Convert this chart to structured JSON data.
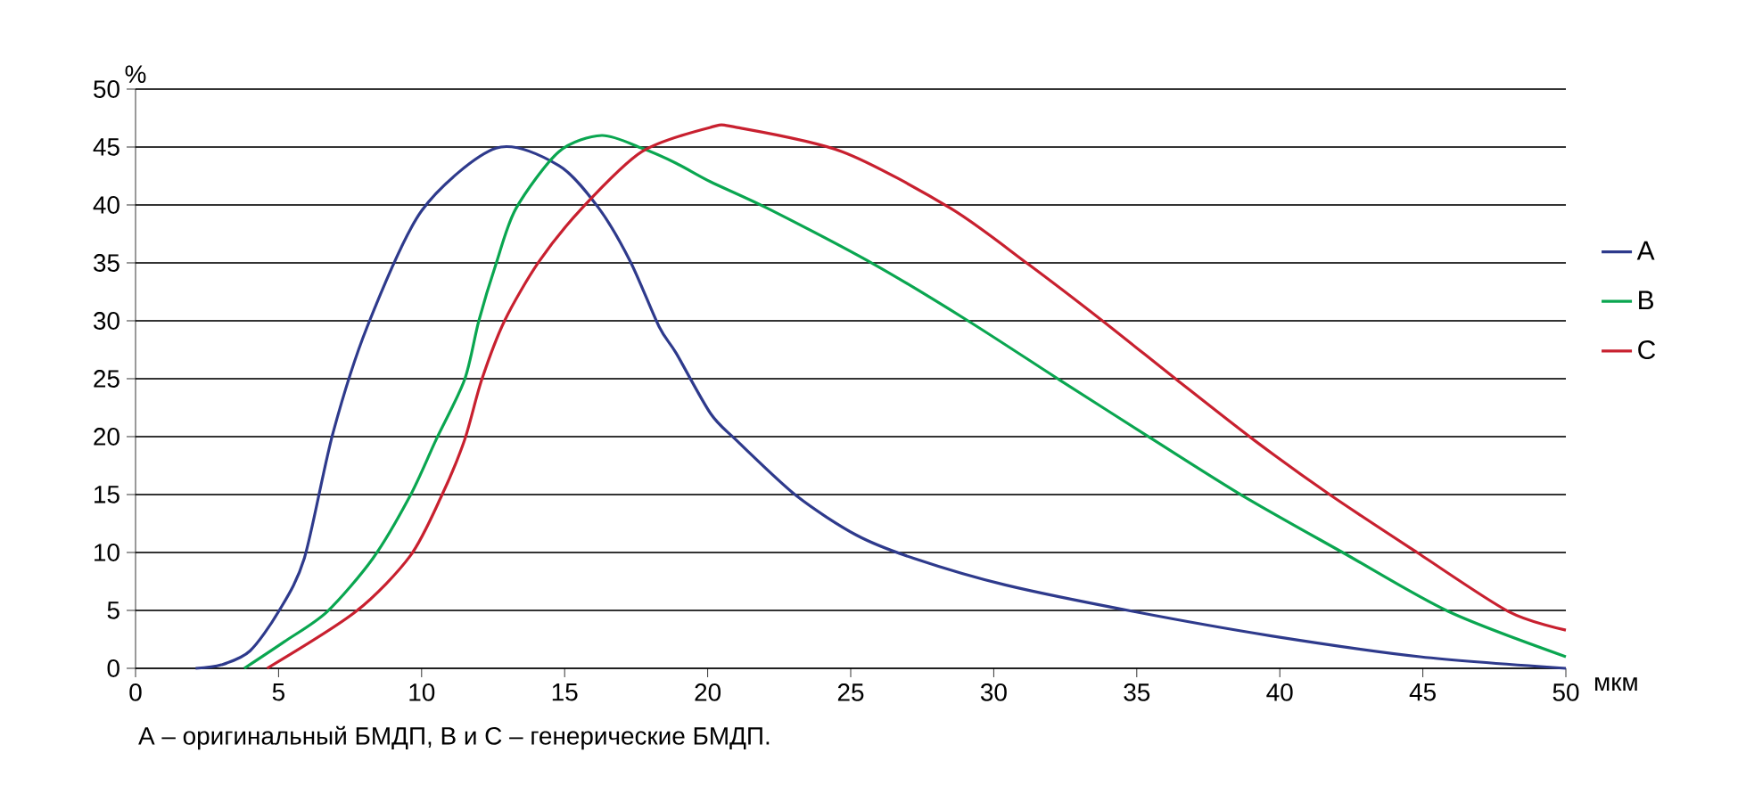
{
  "chart_data": {
    "type": "line",
    "xlabel": "мкм",
    "ylabel": "%",
    "xlim": [
      0,
      50
    ],
    "ylim": [
      0,
      50
    ],
    "xticks": [
      0,
      5,
      10,
      15,
      20,
      25,
      30,
      35,
      40,
      45,
      50
    ],
    "yticks": [
      0,
      5,
      10,
      15,
      20,
      25,
      30,
      35,
      40,
      45,
      50
    ],
    "grid": "y",
    "legend": "right",
    "line_style": "solid",
    "marker": "none",
    "annotations": [
      "A – оригинальный БМДП, B и C – генерические БМДП."
    ],
    "series": [
      {
        "name": "A",
        "color": "#2e3a8c",
        "x": [
          2.1,
          3,
          4,
          5.0,
          5.9,
          6.9,
          8.1,
          10.0,
          12.6,
          14.8,
          16.2,
          17.3,
          18.3,
          18.9,
          20.1,
          21.0,
          23.1,
          25.2,
          27.2,
          30.4,
          34.9,
          39.7,
          44.9,
          50
        ],
        "values": [
          0,
          0.3,
          1.5,
          4.9,
          9.5,
          20.3,
          29.5,
          39.5,
          44.9,
          43.4,
          39.7,
          35.1,
          29.5,
          27.2,
          22,
          19.7,
          14.9,
          11.5,
          9.5,
          7.2,
          4.9,
          2.8,
          1.0,
          0
        ]
      },
      {
        "name": "B",
        "color": "#0aa650",
        "x": [
          3.8,
          5.2,
          6.7,
          8.3,
          9.6,
          10.5,
          11.5,
          12.0,
          12.6,
          13.3,
          14.8,
          16.3,
          17.7,
          18.9,
          20.1,
          22.1,
          25.8,
          29.1,
          32.3,
          35.6,
          38.7,
          42.2,
          45.9,
          50
        ],
        "values": [
          0,
          2.3,
          4.9,
          9.5,
          14.9,
          19.7,
          24.9,
          30,
          34.9,
          39.7,
          44.6,
          46,
          44.9,
          43.6,
          42,
          39.7,
          34.9,
          30,
          24.9,
          19.7,
          14.9,
          10,
          4.9,
          1.0
        ]
      },
      {
        "name": "C",
        "color": "#c8202f",
        "x": [
          4.6,
          7.7,
          9.6,
          10.7,
          11.5,
          12.1,
          12.9,
          14.1,
          15.6,
          17.7,
          20.1,
          21.0,
          24.7,
          28.5,
          31.2,
          33.8,
          36.4,
          39.1,
          41.8,
          44.8,
          48.0,
          50
        ],
        "values": [
          0,
          4.9,
          9.7,
          14.9,
          19.7,
          24.9,
          30,
          35.1,
          39.7,
          44.6,
          46.7,
          46.7,
          44.6,
          39.7,
          34.9,
          30,
          24.9,
          19.7,
          14.9,
          10,
          4.9,
          3.3
        ]
      }
    ]
  }
}
